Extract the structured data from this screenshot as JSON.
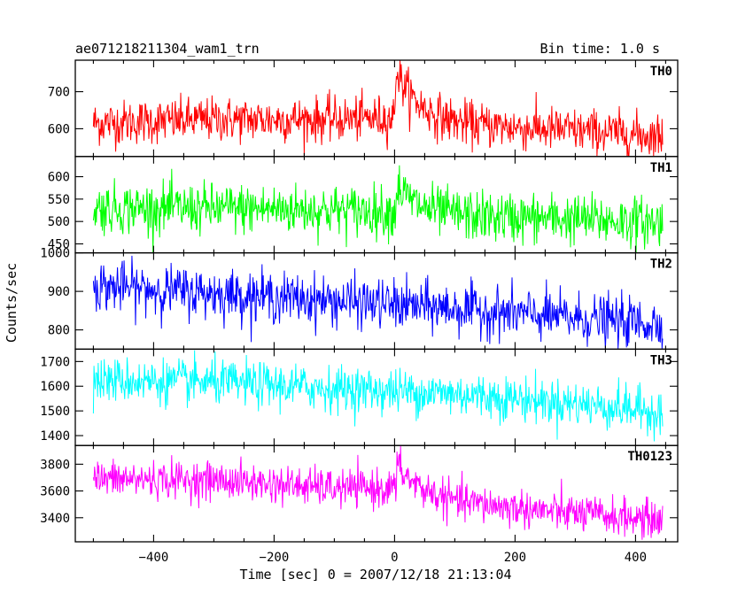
{
  "chart_data": {
    "type": "line",
    "title": "ae071218211304_wam1_trn",
    "subtitle": "Bin time: 1.0 s",
    "xlabel": "Time [sec] 0 = 2007/12/18 21:13:04",
    "ylabel": "Counts/sec",
    "xlim": [
      -530,
      470
    ],
    "x_ticks": [
      -400,
      -200,
      0,
      200,
      400
    ],
    "x_tick_labels": [
      "−400",
      "−200",
      "0",
      "200",
      "400"
    ],
    "x_range": [
      -500,
      445
    ],
    "panels": [
      {
        "name": "TH0",
        "color": "#ff0000",
        "ylim": [
          525,
          785
        ],
        "y_ticks": [
          600,
          700
        ],
        "y_tick_labels": [
          "600",
          "700"
        ],
        "baseline": [
          [
            -500,
            615
          ],
          [
            -300,
            625
          ],
          [
            -100,
            625
          ],
          [
            0,
            630
          ],
          [
            120,
            610
          ],
          [
            300,
            595
          ],
          [
            445,
            580
          ]
        ],
        "noise_sd": 30,
        "flares": [
          {
            "t0": 2,
            "rise": 2,
            "peak": 130,
            "decay": 35
          }
        ]
      },
      {
        "name": "TH1",
        "color": "#00ff00",
        "ylim": [
          430,
          645
        ],
        "y_ticks": [
          450,
          500,
          550,
          600
        ],
        "y_tick_labels": [
          "450",
          "500",
          "550",
          "600"
        ],
        "baseline": [
          [
            -500,
            530
          ],
          [
            -200,
            528
          ],
          [
            0,
            522
          ],
          [
            150,
            510
          ],
          [
            300,
            505
          ],
          [
            445,
            498
          ]
        ],
        "noise_sd": 28,
        "flares": [
          {
            "t0": 4,
            "rise": 2,
            "peak": 60,
            "decay": 30
          }
        ]
      },
      {
        "name": "TH2",
        "color": "#0000ff",
        "ylim": [
          750,
          1000
        ],
        "y_ticks": [
          800,
          900,
          1000
        ],
        "y_tick_labels": [
          "800",
          "900",
          "1000"
        ],
        "baseline": [
          [
            -500,
            915
          ],
          [
            -300,
            895
          ],
          [
            -100,
            875
          ],
          [
            100,
            855
          ],
          [
            300,
            830
          ],
          [
            445,
            815
          ]
        ],
        "noise_sd": 32,
        "flares": []
      },
      {
        "name": "TH3",
        "color": "#00ffff",
        "ylim": [
          1360,
          1750
        ],
        "y_ticks": [
          1400,
          1500,
          1600,
          1700
        ],
        "y_tick_labels": [
          "1400",
          "1500",
          "1600",
          "1700"
        ],
        "baseline": [
          [
            -500,
            1625
          ],
          [
            -300,
            1615
          ],
          [
            -100,
            1590
          ],
          [
            100,
            1570
          ],
          [
            300,
            1530
          ],
          [
            445,
            1495
          ]
        ],
        "noise_sd": 45,
        "flares": []
      },
      {
        "name": "TH0123",
        "color": "#ff00ff",
        "ylim": [
          3220,
          3940
        ],
        "y_ticks": [
          3400,
          3600,
          3800
        ],
        "y_tick_labels": [
          "3400",
          "3600",
          "3800"
        ],
        "baseline": [
          [
            -500,
            3690
          ],
          [
            -300,
            3680
          ],
          [
            -100,
            3620
          ],
          [
            0,
            3620
          ],
          [
            100,
            3520
          ],
          [
            250,
            3450
          ],
          [
            445,
            3380
          ]
        ],
        "noise_sd": 70,
        "flares": [
          {
            "t0": 4,
            "rise": 2,
            "peak": 180,
            "decay": 30
          }
        ]
      }
    ]
  }
}
